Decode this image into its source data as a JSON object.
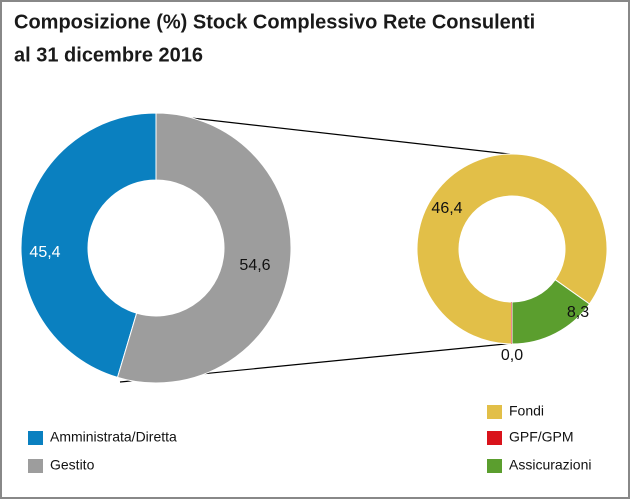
{
  "chart_data": [
    {
      "type": "pie",
      "donut": true,
      "title": [
        "Composizione (%) Stock Complessivo Rete Consulenti",
        "al 31 dicembre 2016"
      ],
      "categories": [
        "Amministrata/Diretta",
        "Gestito"
      ],
      "values": [
        45.4,
        54.6
      ],
      "value_labels": [
        "45,4",
        "54,6"
      ],
      "colors": [
        "#0a80c0",
        "#9d9d9d"
      ]
    },
    {
      "type": "pie",
      "donut": true,
      "categories": [
        "Fondi",
        "GPF/GPM",
        "Assicurazioni"
      ],
      "values": [
        46.4,
        0.0,
        8.3
      ],
      "value_labels": [
        "46,4",
        "0,0",
        "8,3"
      ],
      "colors": [
        "#e2bf48",
        "#d9131b",
        "#5b9e2e"
      ]
    }
  ]
}
